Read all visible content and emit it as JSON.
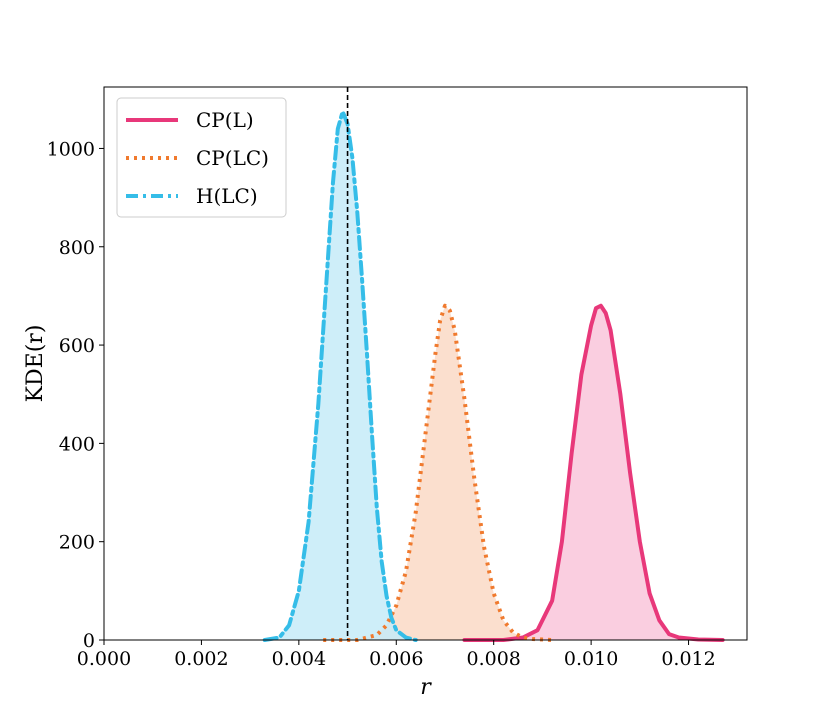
{
  "chart_data": {
    "type": "area",
    "title": "",
    "xlabel": "r",
    "ylabel": "KDE(r)",
    "xlim": [
      0.0,
      0.0132
    ],
    "ylim": [
      0,
      1125
    ],
    "xticks": [
      "0.000",
      "0.002",
      "0.004",
      "0.006",
      "0.008",
      "0.010",
      "0.012"
    ],
    "yticks": [
      "0",
      "200",
      "400",
      "600",
      "800",
      "1000"
    ],
    "grid": false,
    "legend_position": "upper-left",
    "reference_line": {
      "x": 0.005,
      "style": "dashed",
      "color": "#000000"
    },
    "series": [
      {
        "name": "CP(L)",
        "line_style": "solid",
        "color": "#e8387a",
        "fill": "#f9c6da",
        "x": [
          0.0074,
          0.0082,
          0.0086,
          0.0089,
          0.0092,
          0.0094,
          0.0096,
          0.0098,
          0.01,
          0.0101,
          0.0102,
          0.0103,
          0.0104,
          0.0106,
          0.0108,
          0.011,
          0.0112,
          0.0114,
          0.0116,
          0.0118,
          0.0122,
          0.0127
        ],
        "y": [
          0,
          0,
          5,
          20,
          80,
          200,
          380,
          540,
          640,
          675,
          680,
          665,
          630,
          500,
          340,
          200,
          95,
          40,
          12,
          5,
          1,
          0
        ]
      },
      {
        "name": "CP(LC)",
        "line_style": "dotted",
        "color": "#f07a2e",
        "fill": "#fad9c5",
        "x": [
          0.0045,
          0.0052,
          0.0056,
          0.0058,
          0.006,
          0.0062,
          0.0064,
          0.0066,
          0.0068,
          0.0069,
          0.007,
          0.0071,
          0.0072,
          0.0074,
          0.0076,
          0.0078,
          0.008,
          0.0082,
          0.0084,
          0.0086,
          0.0088,
          0.0092
        ],
        "y": [
          0,
          0,
          10,
          30,
          70,
          140,
          260,
          420,
          580,
          650,
          680,
          670,
          630,
          490,
          330,
          190,
          95,
          40,
          15,
          5,
          2,
          0
        ]
      },
      {
        "name": "H(LC)",
        "line_style": "dashdot",
        "color": "#35bde8",
        "fill": "#c5ebf8",
        "x": [
          0.0033,
          0.0036,
          0.0038,
          0.004,
          0.0042,
          0.0044,
          0.0046,
          0.0047,
          0.0048,
          0.0049,
          0.005,
          0.0051,
          0.0052,
          0.0053,
          0.0054,
          0.0055,
          0.0056,
          0.0057,
          0.0058,
          0.0059,
          0.006,
          0.0062,
          0.0064
        ],
        "y": [
          0,
          5,
          30,
          100,
          240,
          480,
          780,
          930,
          1040,
          1075,
          1050,
          980,
          870,
          730,
          580,
          420,
          270,
          160,
          90,
          45,
          20,
          5,
          0
        ]
      }
    ]
  }
}
